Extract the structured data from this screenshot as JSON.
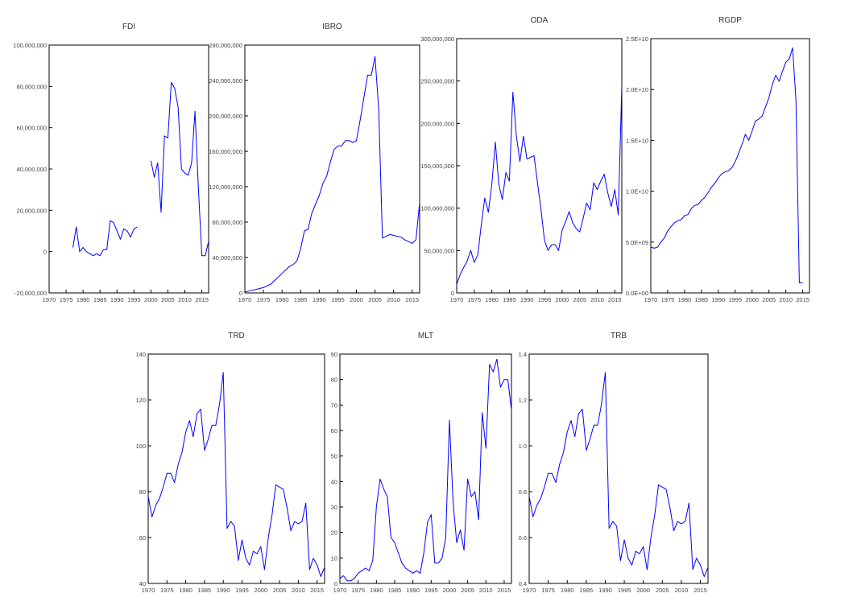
{
  "colors": {
    "series": "#0000ff",
    "frame": "#000000",
    "background": "#ffffff"
  },
  "chart_data": [
    {
      "type": "line",
      "title": "FDI",
      "x_ticks": [
        "1970",
        "1975",
        "1980",
        "1985",
        "1990",
        "1995",
        "2000",
        "2005",
        "2010",
        "2015"
      ],
      "y_ticks": [
        "-20,000,000",
        "0",
        "20,000,000",
        "40,000,000",
        "60,000,000",
        "80,000,000",
        "100,000,000"
      ],
      "xlim": [
        1970,
        2017
      ],
      "ylim": [
        -20000000,
        100000000
      ],
      "x": [
        1977,
        1978,
        1979,
        1980,
        1981,
        1982,
        1983,
        1984,
        1985,
        1986,
        1987,
        1988,
        1989,
        1990,
        1991,
        1992,
        1993,
        1994,
        1995,
        1996,
        1997,
        1998,
        1999,
        2000,
        2001,
        2002,
        2003,
        2004,
        2005,
        2006,
        2007,
        2008,
        2009,
        2010,
        2011,
        2012,
        2013,
        2014,
        2015,
        2016,
        2017
      ],
      "values": [
        2000000,
        12000000,
        0,
        2000000,
        0,
        -1000000,
        -2000000,
        -1000000,
        -2000000,
        1000000,
        1000000,
        15000000,
        14000000,
        10000000,
        6000000,
        11000000,
        10000000,
        7000000,
        11000000,
        12000000,
        null,
        null,
        null,
        44000000,
        36000000,
        43000000,
        19000000,
        56000000,
        55000000,
        82000000,
        79000000,
        70000000,
        40000000,
        38000000,
        37000000,
        43000000,
        68000000,
        30000000,
        -2000000,
        -2000000,
        5000000
      ]
    },
    {
      "type": "line",
      "title": "IBRO",
      "x_ticks": [
        "1970",
        "1975",
        "1980",
        "1985",
        "1990",
        "1995",
        "2000",
        "2005",
        "2010",
        "2015"
      ],
      "y_ticks": [
        "0",
        "40,000,000",
        "80,000,000",
        "120,000,000",
        "160,000,000",
        "200,000,000",
        "240,000,000",
        "280,000,000"
      ],
      "xlim": [
        1970,
        2017
      ],
      "ylim": [
        0,
        280000000
      ],
      "x": [
        1970,
        1971,
        1972,
        1973,
        1974,
        1975,
        1976,
        1977,
        1978,
        1979,
        1980,
        1981,
        1982,
        1983,
        1984,
        1985,
        1986,
        1987,
        1988,
        1989,
        1990,
        1991,
        1992,
        1993,
        1994,
        1995,
        1996,
        1997,
        1998,
        1999,
        2000,
        2001,
        2002,
        2003,
        2004,
        2005,
        2006,
        2007,
        2008,
        2009,
        2010,
        2011,
        2012,
        2013,
        2014,
        2015,
        2016,
        2017
      ],
      "values": [
        1000000,
        2000000,
        3000000,
        4000000,
        5000000,
        6000000,
        8000000,
        10000000,
        14000000,
        18000000,
        22000000,
        26000000,
        30000000,
        32000000,
        36000000,
        50000000,
        70000000,
        72000000,
        90000000,
        100000000,
        110000000,
        124000000,
        132000000,
        148000000,
        162000000,
        166000000,
        166000000,
        172000000,
        172000000,
        170000000,
        172000000,
        195000000,
        220000000,
        246000000,
        246000000,
        267000000,
        207000000,
        62000000,
        64000000,
        66000000,
        65000000,
        64000000,
        63000000,
        60000000,
        58000000,
        56000000,
        60000000,
        102000000
      ]
    },
    {
      "type": "line",
      "title": "ODA",
      "x_ticks": [
        "1970",
        "1975",
        "1980",
        "1985",
        "1990",
        "1995",
        "2000",
        "2005",
        "2010",
        "2015"
      ],
      "y_ticks": [
        "0",
        "50,000,000",
        "100,000,000",
        "150,000,000",
        "200,000,000",
        "250,000,000",
        "300,000,000"
      ],
      "xlim": [
        1970,
        2017
      ],
      "ylim": [
        0,
        300000000
      ],
      "x": [
        1970,
        1971,
        1972,
        1973,
        1974,
        1975,
        1976,
        1977,
        1978,
        1979,
        1980,
        1981,
        1982,
        1983,
        1984,
        1985,
        1986,
        1987,
        1988,
        1989,
        1990,
        1991,
        1992,
        1993,
        1994,
        1995,
        1996,
        1997,
        1998,
        1999,
        2000,
        2001,
        2002,
        2003,
        2004,
        2005,
        2006,
        2007,
        2008,
        2009,
        2010,
        2011,
        2012,
        2013,
        2014,
        2015,
        2016,
        2017
      ],
      "values": [
        10000000,
        22000000,
        30000000,
        38000000,
        50000000,
        36000000,
        45000000,
        80000000,
        112000000,
        95000000,
        128000000,
        178000000,
        128000000,
        110000000,
        142000000,
        132000000,
        237000000,
        185000000,
        155000000,
        185000000,
        158000000,
        160000000,
        162000000,
        130000000,
        98000000,
        62000000,
        50000000,
        57000000,
        57000000,
        50000000,
        74000000,
        84000000,
        96000000,
        83000000,
        76000000,
        72000000,
        88000000,
        106000000,
        98000000,
        130000000,
        122000000,
        132000000,
        140000000,
        118000000,
        102000000,
        122000000,
        92000000,
        245000000
      ]
    },
    {
      "type": "line",
      "title": "RGDP",
      "x_ticks": [
        "1970",
        "1975",
        "1980",
        "1985",
        "1990",
        "1995",
        "2000",
        "2005",
        "2010",
        "2015"
      ],
      "y_ticks": [
        "0.0E+00",
        "5.0E+09",
        "1.0E+10",
        "1.5E+10",
        "2.0E+10",
        "2.5E+10"
      ],
      "xlim": [
        1970,
        2017
      ],
      "ylim": [
        0,
        25000000000
      ],
      "x": [
        1970,
        1971,
        1972,
        1973,
        1974,
        1975,
        1976,
        1977,
        1978,
        1979,
        1980,
        1981,
        1982,
        1983,
        1984,
        1985,
        1986,
        1987,
        1988,
        1989,
        1990,
        1991,
        1992,
        1993,
        1994,
        1995,
        1996,
        1997,
        1998,
        1999,
        2000,
        2001,
        2002,
        2003,
        2004,
        2005,
        2006,
        2007,
        2008,
        2009,
        2010,
        2011,
        2012,
        2013,
        2014,
        2015,
        2016,
        2017
      ],
      "values": [
        4500000000,
        4400000000,
        4500000000,
        5000000000,
        5400000000,
        6100000000,
        6500000000,
        6900000000,
        7100000000,
        7200000000,
        7600000000,
        7700000000,
        8300000000,
        8600000000,
        8700000000,
        9100000000,
        9400000000,
        9900000000,
        10400000000,
        10800000000,
        11300000000,
        11700000000,
        11900000000,
        12000000000,
        12300000000,
        12900000000,
        13700000000,
        14600000000,
        15600000000,
        15000000000,
        15900000000,
        16900000000,
        17100000000,
        17400000000,
        18300000000,
        19200000000,
        20500000000,
        21400000000,
        20800000000,
        21800000000,
        22700000000,
        23000000000,
        24100000000,
        19000000000,
        1000000000,
        1000000000,
        null,
        null
      ]
    },
    {
      "type": "line",
      "title": "TRD",
      "x_ticks": [
        "1970",
        "1975",
        "1980",
        "1985",
        "1990",
        "1995",
        "2000",
        "2005",
        "2010",
        "2015"
      ],
      "y_ticks": [
        "40",
        "60",
        "80",
        "100",
        "120",
        "140"
      ],
      "xlim": [
        1970,
        2017
      ],
      "ylim": [
        40,
        140
      ],
      "x": [
        1970,
        1971,
        1972,
        1973,
        1974,
        1975,
        1976,
        1977,
        1978,
        1979,
        1980,
        1981,
        1982,
        1983,
        1984,
        1985,
        1986,
        1987,
        1988,
        1989,
        1990,
        1991,
        1992,
        1993,
        1994,
        1995,
        1996,
        1997,
        1998,
        1999,
        2000,
        2001,
        2002,
        2003,
        2004,
        2005,
        2006,
        2007,
        2008,
        2009,
        2010,
        2011,
        2012,
        2013,
        2014,
        2015,
        2016,
        2017
      ],
      "values": [
        78,
        69,
        74,
        77,
        82,
        88,
        88,
        84,
        92,
        97,
        106,
        111,
        104,
        114,
        116,
        98,
        103,
        109,
        109,
        118,
        132,
        64,
        67,
        65,
        50,
        59,
        51,
        48,
        54,
        53,
        56,
        46,
        60,
        70,
        83,
        82,
        81,
        73,
        63,
        67,
        66,
        67,
        75,
        46,
        51,
        48,
        43,
        47
      ]
    },
    {
      "type": "line",
      "title": "MLT",
      "x_ticks": [
        "1970",
        "1975",
        "1980",
        "1985",
        "1990",
        "1995",
        "2000",
        "2005",
        "2010",
        "2015"
      ],
      "y_ticks": [
        "0",
        "10",
        "20",
        "30",
        "40",
        "50",
        "60",
        "70",
        "80",
        "90"
      ],
      "xlim": [
        1970,
        2017
      ],
      "ylim": [
        0,
        90
      ],
      "x": [
        1970,
        1971,
        1972,
        1973,
        1974,
        1975,
        1976,
        1977,
        1978,
        1979,
        1980,
        1981,
        1982,
        1983,
        1984,
        1985,
        1986,
        1987,
        1988,
        1989,
        1990,
        1991,
        1992,
        1993,
        1994,
        1995,
        1996,
        1997,
        1998,
        1999,
        2000,
        2001,
        2002,
        2003,
        2004,
        2005,
        2006,
        2007,
        2008,
        2009,
        2010,
        2011,
        2012,
        2013,
        2014,
        2015,
        2016,
        2017
      ],
      "values": [
        2,
        3,
        1,
        1,
        2,
        4,
        5,
        6,
        5,
        9,
        30,
        41,
        37,
        34,
        18,
        16,
        12,
        8,
        6,
        5,
        4,
        5,
        4,
        12,
        24,
        27,
        8,
        8,
        10,
        18,
        64,
        32,
        16,
        21,
        13,
        41,
        34,
        36,
        25,
        67,
        53,
        86,
        83,
        88,
        77,
        80,
        80,
        68
      ]
    },
    {
      "type": "line",
      "title": "TRB",
      "x_ticks": [
        "1970",
        "1975",
        "1980",
        "1985",
        "1990",
        "1995",
        "2000",
        "2005",
        "2010",
        "2015"
      ],
      "y_ticks": [
        "0.4",
        "0.6",
        "0.8",
        "1.0",
        "1.2",
        "1.4"
      ],
      "xlim": [
        1970,
        2017
      ],
      "ylim": [
        0.4,
        1.4
      ],
      "x": [
        1970,
        1971,
        1972,
        1973,
        1974,
        1975,
        1976,
        1977,
        1978,
        1979,
        1980,
        1981,
        1982,
        1983,
        1984,
        1985,
        1986,
        1987,
        1988,
        1989,
        1990,
        1991,
        1992,
        1993,
        1994,
        1995,
        1996,
        1997,
        1998,
        1999,
        2000,
        2001,
        2002,
        2003,
        2004,
        2005,
        2006,
        2007,
        2008,
        2009,
        2010,
        2011,
        2012,
        2013,
        2014,
        2015,
        2016,
        2017
      ],
      "values": [
        0.78,
        0.69,
        0.74,
        0.77,
        0.82,
        0.88,
        0.88,
        0.84,
        0.92,
        0.97,
        1.06,
        1.11,
        1.04,
        1.14,
        1.16,
        0.98,
        1.03,
        1.09,
        1.09,
        1.18,
        1.32,
        0.64,
        0.67,
        0.65,
        0.5,
        0.59,
        0.51,
        0.48,
        0.54,
        0.53,
        0.56,
        0.46,
        0.6,
        0.7,
        0.83,
        0.82,
        0.81,
        0.73,
        0.63,
        0.67,
        0.66,
        0.67,
        0.75,
        0.46,
        0.51,
        0.48,
        0.43,
        0.47
      ]
    }
  ]
}
